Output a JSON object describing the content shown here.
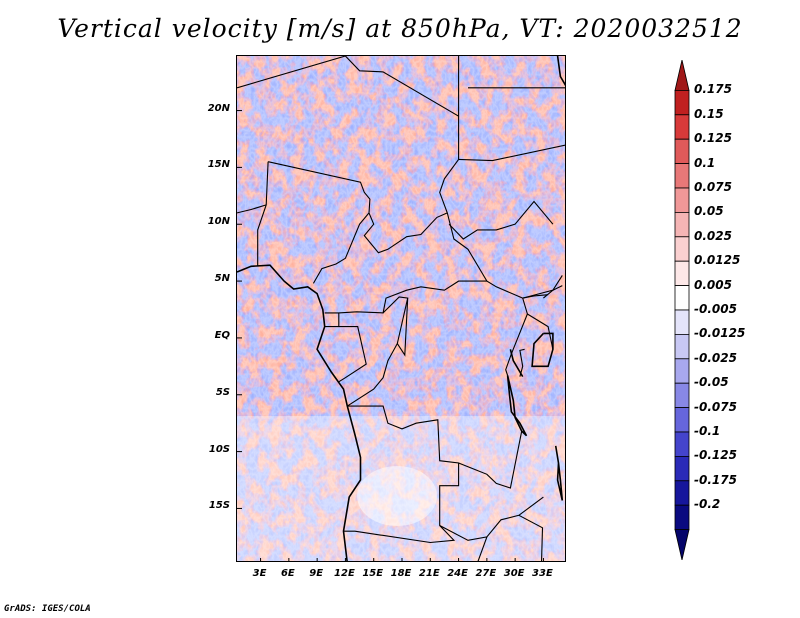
{
  "title": "Vertical velocity [m/s] at 850hPa, VT: 2020032512",
  "credit": "GrADS: IGES/COLA",
  "map": {
    "variable": "vertical velocity",
    "lat_ticks": [
      "20N",
      "15N",
      "10N",
      "5N",
      "EQ",
      "5S",
      "10S",
      "15S"
    ],
    "lat_values": [
      20,
      15,
      10,
      5,
      0,
      -5,
      -10,
      -15
    ],
    "lon_ticks": [
      "3E",
      "6E",
      "9E",
      "12E",
      "15E",
      "18E",
      "21E",
      "24E",
      "27E",
      "30E",
      "33E"
    ],
    "lon_values": [
      3,
      6,
      9,
      12,
      15,
      18,
      21,
      24,
      27,
      30,
      33
    ],
    "lat_range": [
      -19.8,
      24.8
    ],
    "lon_range": [
      0.5,
      35.5
    ]
  },
  "colorbar": {
    "labels": [
      "0.175",
      "0.15",
      "0.125",
      "0.1",
      "0.075",
      "0.05",
      "0.025",
      "0.0125",
      "0.005",
      "-0.005",
      "-0.0125",
      "-0.025",
      "-0.05",
      "-0.075",
      "-0.1",
      "-0.125",
      "-0.175",
      "-0.2"
    ],
    "colors": [
      "#a01818",
      "#c02020",
      "#d83a3a",
      "#e05a5a",
      "#e87878",
      "#f09898",
      "#f5b5b5",
      "#fad0d0",
      "#fde8e8",
      "#ffffff",
      "#e4e4fa",
      "#c8c8f4",
      "#a8a8ee",
      "#8888e6",
      "#6666dc",
      "#4444cc",
      "#2a2ab8",
      "#16169c",
      "#0a0a80",
      "#05056a"
    ]
  }
}
